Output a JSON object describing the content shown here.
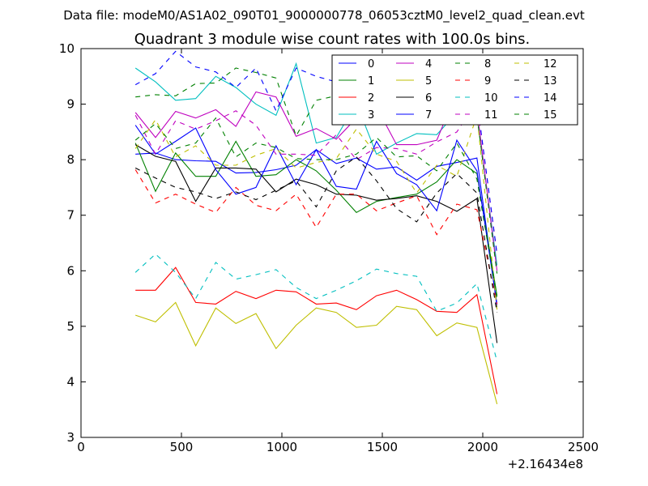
{
  "suptitle": "Data file: modeM0/AS1A02_090T01_9000000778_06053cztM0_level2_quad_clean.evt",
  "chart_data": {
    "type": "line",
    "title": "Quadrant 3 module wise count rates with 100.0s bins.",
    "xlabel": "",
    "ylabel": "",
    "xlim": [
      0,
      2500
    ],
    "ylim": [
      3,
      10
    ],
    "x_offset_label": "+2.16434e8",
    "xticks": [
      "0",
      "500",
      "1000",
      "1500",
      "2000",
      "2500"
    ],
    "yticks": [
      "3",
      "4",
      "5",
      "6",
      "7",
      "8",
      "9",
      "10"
    ],
    "grid": false,
    "legend_position": "top-right",
    "x": [
      271,
      371,
      471,
      571,
      671,
      771,
      871,
      971,
      1071,
      1171,
      1271,
      1371,
      1471,
      1571,
      1671,
      1771,
      1871,
      1971,
      2071
    ],
    "series": [
      {
        "name": "0",
        "color": "#0000ff",
        "dash": false,
        "values": [
          8.1,
          8.12,
          8.0,
          7.98,
          7.97,
          7.76,
          7.77,
          7.82,
          7.9,
          8.18,
          7.93,
          8.03,
          7.83,
          7.87,
          7.63,
          7.88,
          7.95,
          8.03,
          5.35
        ]
      },
      {
        "name": "1",
        "color": "#008000",
        "dash": false,
        "values": [
          8.3,
          7.43,
          8.12,
          7.7,
          7.7,
          8.33,
          7.7,
          7.73,
          8.0,
          7.8,
          7.45,
          7.05,
          7.25,
          7.32,
          7.38,
          7.6,
          8.0,
          7.75,
          5.55
        ]
      },
      {
        "name": "2",
        "color": "#ff0000",
        "dash": false,
        "values": [
          5.65,
          5.65,
          6.06,
          5.43,
          5.4,
          5.63,
          5.5,
          5.65,
          5.62,
          5.4,
          5.42,
          5.3,
          5.55,
          5.65,
          5.48,
          5.27,
          5.25,
          5.57,
          3.78
        ]
      },
      {
        "name": "3",
        "color": "#00bfbf",
        "dash": false,
        "values": [
          9.65,
          9.4,
          9.07,
          9.1,
          9.5,
          9.3,
          9.0,
          8.8,
          9.73,
          8.3,
          8.4,
          9.02,
          8.1,
          8.3,
          8.47,
          8.45,
          8.85,
          8.8,
          6.1
        ]
      },
      {
        "name": "4",
        "color": "#bf00bf",
        "dash": false,
        "values": [
          8.85,
          8.4,
          8.87,
          8.75,
          8.9,
          8.6,
          9.22,
          9.13,
          8.42,
          8.56,
          8.37,
          8.75,
          8.95,
          8.27,
          8.27,
          8.35,
          9.22,
          8.9,
          6.0
        ]
      },
      {
        "name": "5",
        "color": "#bfbf00",
        "dash": false,
        "values": [
          5.2,
          5.08,
          5.43,
          4.65,
          5.33,
          5.05,
          5.23,
          4.6,
          5.02,
          5.33,
          5.25,
          4.98,
          5.02,
          5.36,
          5.3,
          4.83,
          5.06,
          4.98,
          3.6
        ]
      },
      {
        "name": "6",
        "color": "#000000",
        "dash": false,
        "values": [
          8.27,
          8.06,
          7.97,
          7.25,
          7.85,
          7.85,
          7.83,
          7.42,
          7.65,
          7.55,
          7.38,
          7.36,
          7.27,
          7.3,
          7.35,
          7.25,
          7.07,
          7.3,
          4.7
        ]
      },
      {
        "name": "7",
        "color": "#0000ff",
        "dash": false,
        "values": [
          8.62,
          8.1,
          8.33,
          8.57,
          7.82,
          7.38,
          7.5,
          8.25,
          7.55,
          8.18,
          7.52,
          7.47,
          8.33,
          7.75,
          7.55,
          7.08,
          8.35,
          7.8,
          5.4
        ]
      },
      {
        "name": "8",
        "color": "#008000",
        "dash": true,
        "values": [
          9.13,
          9.17,
          9.15,
          9.37,
          9.38,
          9.65,
          9.57,
          9.47,
          8.43,
          9.07,
          9.15,
          9.23,
          8.97,
          9.05,
          8.98,
          9.3,
          8.95,
          8.8,
          5.95
        ]
      },
      {
        "name": "9",
        "color": "#ff0000",
        "dash": true,
        "values": [
          7.82,
          7.22,
          7.38,
          7.2,
          7.05,
          7.5,
          7.18,
          7.08,
          7.38,
          6.78,
          7.38,
          7.38,
          7.08,
          7.22,
          7.35,
          6.65,
          7.2,
          7.1,
          5.4
        ]
      },
      {
        "name": "10",
        "color": "#00bfbf",
        "dash": true,
        "values": [
          5.97,
          6.3,
          5.97,
          5.5,
          6.15,
          5.85,
          5.93,
          6.02,
          5.7,
          5.5,
          5.65,
          5.82,
          6.03,
          5.95,
          5.9,
          5.27,
          5.42,
          5.77,
          4.37
        ]
      },
      {
        "name": "11",
        "color": "#bf00bf",
        "dash": true,
        "values": [
          8.8,
          8.1,
          8.7,
          8.55,
          8.7,
          8.88,
          8.62,
          8.1,
          8.1,
          8.08,
          8.45,
          8.0,
          8.22,
          8.2,
          8.1,
          8.32,
          8.5,
          9.05,
          6.3
        ]
      },
      {
        "name": "12",
        "color": "#bfbf00",
        "dash": true,
        "values": [
          8.2,
          8.72,
          8.05,
          8.25,
          7.9,
          7.9,
          8.08,
          8.2,
          7.85,
          7.95,
          8.02,
          8.55,
          8.1,
          7.97,
          7.4,
          7.9,
          7.7,
          8.8,
          5.3
        ]
      },
      {
        "name": "13",
        "color": "#000000",
        "dash": true,
        "values": [
          7.85,
          7.67,
          7.5,
          7.42,
          7.3,
          7.42,
          7.28,
          7.45,
          7.62,
          7.15,
          7.8,
          8.05,
          7.62,
          7.12,
          6.88,
          7.4,
          7.75,
          7.4,
          5.25
        ]
      },
      {
        "name": "14",
        "color": "#0000ff",
        "dash": true,
        "values": [
          9.35,
          9.55,
          9.95,
          9.67,
          9.58,
          9.3,
          9.65,
          8.88,
          9.65,
          9.5,
          9.4,
          9.0,
          8.95,
          9.12,
          8.95,
          9.0,
          9.45,
          9.07,
          6.3
        ]
      },
      {
        "name": "15",
        "color": "#008000",
        "dash": true,
        "values": [
          8.35,
          8.65,
          8.2,
          8.3,
          8.75,
          8.05,
          8.3,
          8.22,
          8.02,
          8.0,
          8.0,
          8.1,
          8.4,
          8.05,
          8.07,
          7.8,
          8.3,
          7.65,
          5.5
        ]
      }
    ]
  }
}
